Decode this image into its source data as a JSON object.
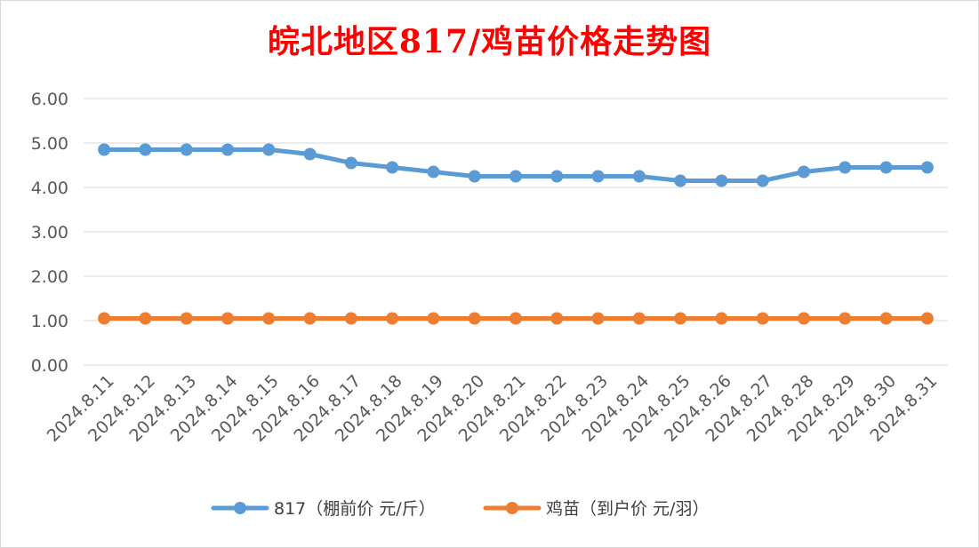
{
  "chart_data": {
    "type": "line",
    "title": "皖北地区817/鸡苗价格走势图",
    "categories": [
      "2024.8.11",
      "2024.8.12",
      "2024.8.13",
      "2024.8.14",
      "2024.8.15",
      "2024.8.16",
      "2024.8.17",
      "2024.8.18",
      "2024.8.19",
      "2024.8.20",
      "2024.8.21",
      "2024.8.22",
      "2024.8.23",
      "2024.8.24",
      "2024.8.25",
      "2024.8.26",
      "2024.8.27",
      "2024.8.28",
      "2024.8.29",
      "2024.8.30",
      "2024.8.31"
    ],
    "series": [
      {
        "name": "817（棚前价 元/斤）",
        "color": "#5b9bd5",
        "values": [
          4.85,
          4.85,
          4.85,
          4.85,
          4.85,
          4.75,
          4.55,
          4.45,
          4.35,
          4.25,
          4.25,
          4.25,
          4.25,
          4.25,
          4.15,
          4.15,
          4.15,
          4.35,
          4.45,
          4.45,
          4.45
        ]
      },
      {
        "name": "鸡苗（到户价 元/羽）",
        "color": "#ed7d31",
        "values": [
          1.05,
          1.05,
          1.05,
          1.05,
          1.05,
          1.05,
          1.05,
          1.05,
          1.05,
          1.05,
          1.05,
          1.05,
          1.05,
          1.05,
          1.05,
          1.05,
          1.05,
          1.05,
          1.05,
          1.05,
          1.05
        ]
      }
    ],
    "ylim": [
      0,
      6
    ],
    "yticks": [
      "0.00",
      "1.00",
      "2.00",
      "3.00",
      "4.00",
      "5.00",
      "6.00"
    ],
    "grid": true,
    "legend_position": "bottom"
  }
}
